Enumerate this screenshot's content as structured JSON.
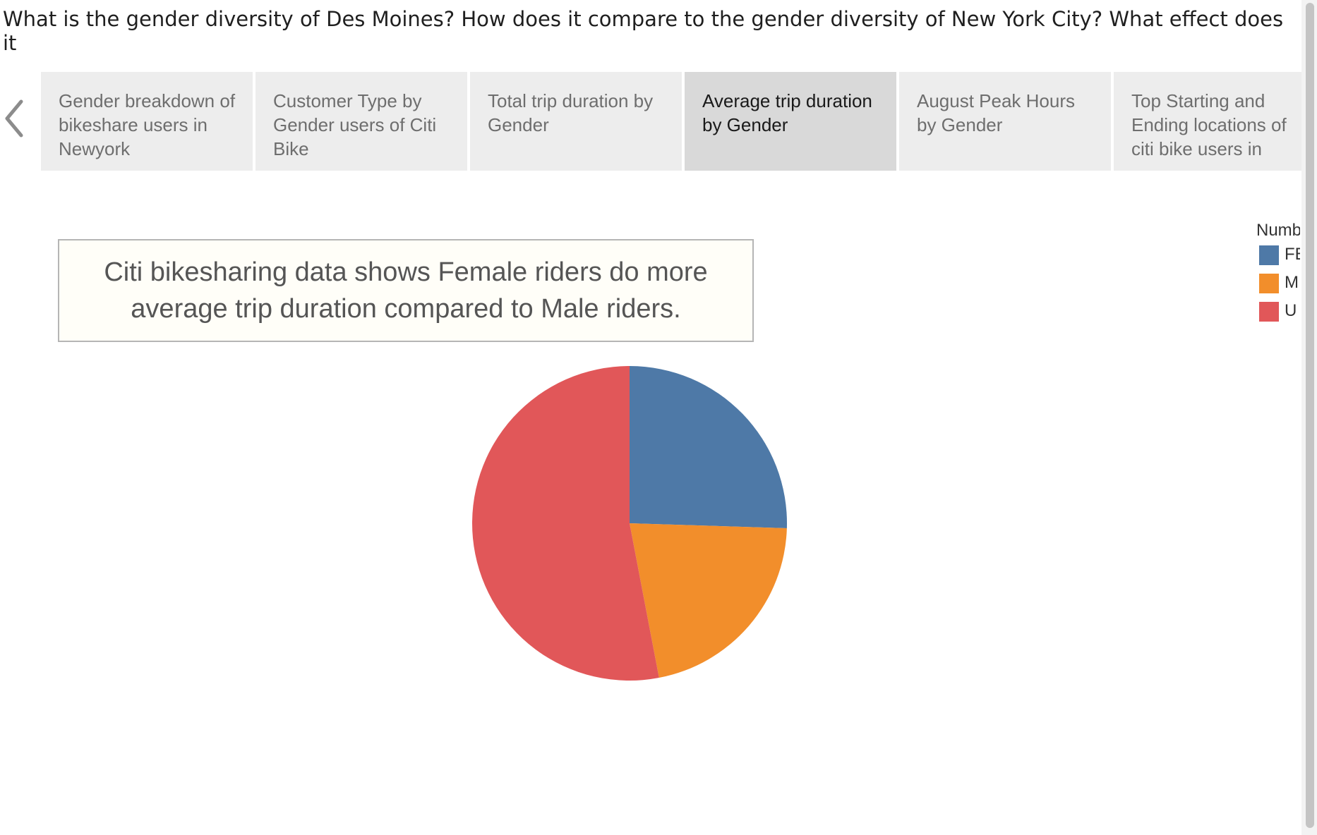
{
  "story": {
    "title": "What is the gender diversity of Des Moines? How does it compare to the gender diversity of New York City? What effect does it\nbusiness in Des Moines?"
  },
  "navigation": {
    "prev_icon": "chevron-left-icon"
  },
  "tabs": [
    {
      "label": "Gender breakdown of bikeshare users in Newyork",
      "active": false
    },
    {
      "label": "Customer Type by Gender users of Citi Bike",
      "active": false
    },
    {
      "label": "Total trip duration by Gender",
      "active": false
    },
    {
      "label": "Average trip duration by Gender",
      "active": true
    },
    {
      "label": "August Peak Hours by Gender",
      "active": false
    },
    {
      "label": "Top Starting and Ending locations of citi bike users in",
      "active": false
    }
  ],
  "caption": {
    "text": "Citi bikesharing data shows Female riders do more average trip duration compared to Male riders."
  },
  "legend": {
    "title": "Numb",
    "items": [
      {
        "label": "FE",
        "color": "#4e79a7"
      },
      {
        "label": "M",
        "color": "#f28e2b"
      },
      {
        "label": "U",
        "color": "#e15759"
      }
    ]
  },
  "chart_data": {
    "type": "pie",
    "categories": [
      "FE",
      "M",
      "U"
    ],
    "values": [
      25.5,
      21.5,
      53.0
    ],
    "colors": [
      "#4e79a7",
      "#f28e2b",
      "#e15759"
    ]
  }
}
